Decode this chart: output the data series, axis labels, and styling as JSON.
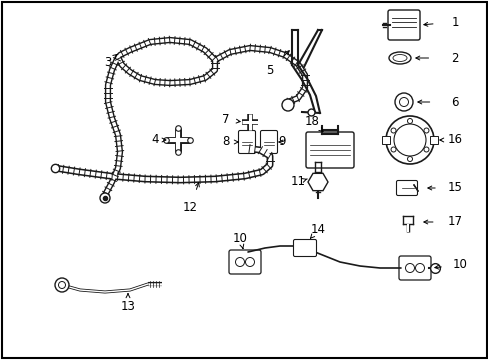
{
  "background_color": "#ffffff",
  "border_color": "#000000",
  "line_color": "#1a1a1a",
  "fig_width": 4.89,
  "fig_height": 3.6,
  "dpi": 100
}
